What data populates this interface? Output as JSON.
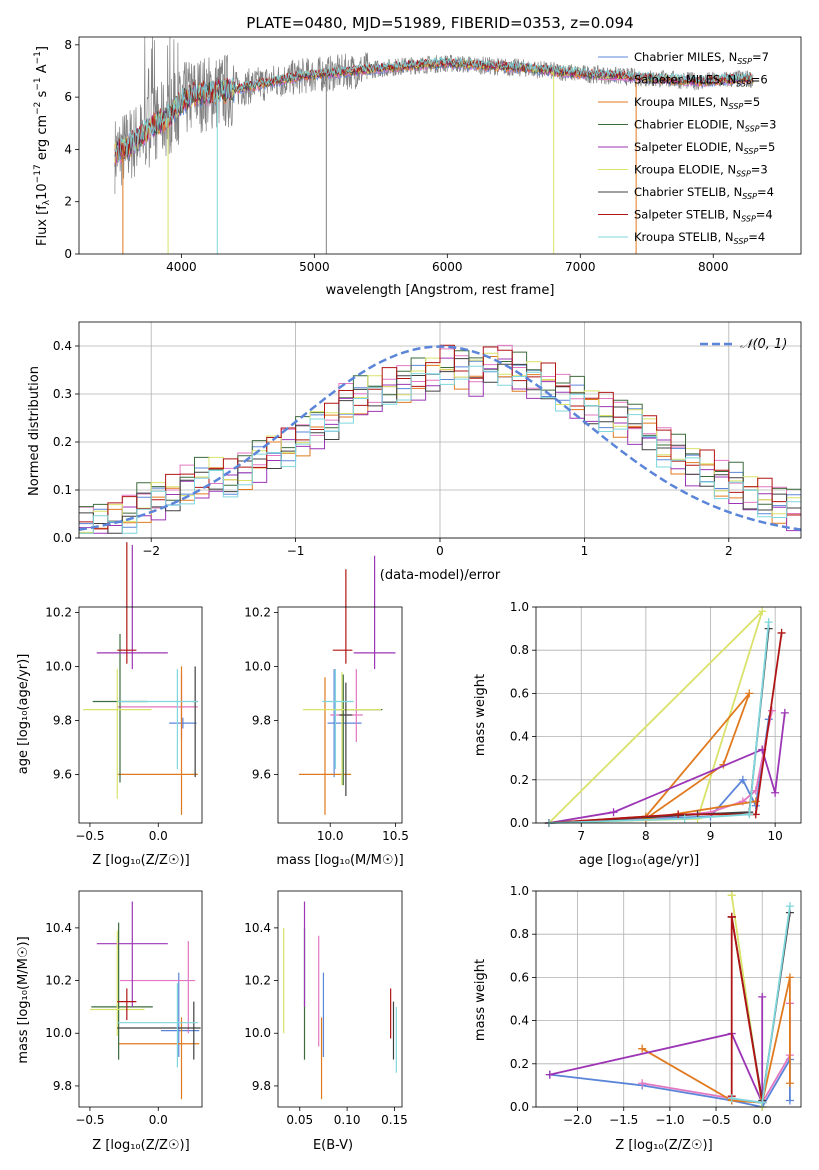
{
  "figure": {
    "title": "PLATE=0480, MJD=51989, FIBERID=0353, z=0.094"
  },
  "colors": {
    "chabrier_miles": "#5b85d9",
    "salpeter_miles": "#e377c2",
    "kroupa_miles": "#e07a1f",
    "chabrier_elodie": "#3c6b3c",
    "salpeter_elodie": "#9c35b5",
    "kroupa_elodie": "#d9e26a",
    "chabrier_stelib": "#404040",
    "salpeter_stelib": "#b01515",
    "kroupa_stelib": "#7fd6dc",
    "data": "#808080",
    "ylw": "#c7e84d"
  },
  "chart_data": [
    {
      "id": "spectrum",
      "type": "line",
      "xlabel": "wavelength [Angstrom, rest frame]",
      "xlim": [
        3230,
        8660
      ],
      "ylim": [
        0,
        8.3
      ],
      "xticks": [
        "4000",
        "5000",
        "6000",
        "7000",
        "8000"
      ],
      "yticks": [
        "0",
        "2",
        "4",
        "6",
        "8"
      ],
      "legend_position": "right",
      "legend": [
        {
          "name": "Chabrier MILES",
          "n": "7"
        },
        {
          "name": "Salpeter MILES",
          "n": "6"
        },
        {
          "name": "Kroupa MILES",
          "n": "5"
        },
        {
          "name": "Chabrier ELODIE",
          "n": "3"
        },
        {
          "name": "Salpeter ELODIE",
          "n": "5"
        },
        {
          "name": "Kroupa ELODIE",
          "n": "3"
        },
        {
          "name": "Chabrier STELIB",
          "n": "4"
        },
        {
          "name": "Salpeter STELIB",
          "n": "4"
        },
        {
          "name": "Kroupa STELIB",
          "n": "4"
        }
      ],
      "continuum": {
        "x": [
          3500,
          3650,
          3800,
          3900,
          4000,
          4100,
          4300,
          4500,
          4700,
          4900,
          5100,
          5300,
          5500,
          5700,
          6000,
          6300,
          6600,
          6800,
          7000,
          7300,
          7600,
          7900,
          8200
        ],
        "y": [
          3.8,
          4.3,
          5.0,
          5.2,
          5.8,
          6.1,
          6.2,
          6.4,
          6.6,
          6.8,
          6.9,
          7.0,
          7.1,
          7.2,
          7.3,
          7.2,
          7.1,
          7.0,
          6.9,
          6.8,
          6.7,
          6.6,
          6.7
        ]
      }
    },
    {
      "id": "residuals",
      "type": "line",
      "xlabel": "(data-model)/error",
      "ylabel": "Normed distribution",
      "xlim": [
        -2.5,
        2.5
      ],
      "ylim": [
        0,
        0.45
      ],
      "xticks": [
        "−2",
        "−1",
        "0",
        "1",
        "2"
      ],
      "yticks": [
        "0.0",
        "0.1",
        "0.2",
        "0.3",
        "0.4"
      ],
      "grid": true,
      "legend_position": "top-right",
      "legend": "𝒩(0, 1)",
      "bin_width": 0.1,
      "bin_start": -2.5,
      "series_base": [
        0.03,
        0.03,
        0.04,
        0.05,
        0.07,
        0.08,
        0.09,
        0.11,
        0.12,
        0.13,
        0.12,
        0.14,
        0.16,
        0.18,
        0.19,
        0.21,
        0.23,
        0.24,
        0.28,
        0.29,
        0.3,
        0.31,
        0.32,
        0.33,
        0.34,
        0.36,
        0.35,
        0.34,
        0.36,
        0.36,
        0.34,
        0.33,
        0.32,
        0.3,
        0.29,
        0.27,
        0.26,
        0.25,
        0.24,
        0.22,
        0.19,
        0.17,
        0.15,
        0.14,
        0.12,
        0.11,
        0.09,
        0.08,
        0.07,
        0.06
      ],
      "series_offsets": [
        0.0,
        0.012,
        -0.01,
        0.018,
        -0.015,
        0.008,
        -0.006,
        0.015,
        -0.012
      ]
    },
    {
      "id": "age-vs-Z",
      "type": "scatter",
      "xlabel": "Z [log₁₀(Z/Z☉)]",
      "ylabel": "age  [log₁₀(age/yr)]",
      "xlim": [
        -0.58,
        0.32
      ],
      "ylim": [
        9.42,
        10.22
      ],
      "xticks": [
        "−0.5",
        "0.0"
      ],
      "xtick_values": [
        -0.5,
        0.0
      ],
      "yticks": [
        "9.6",
        "9.8",
        "10.0",
        "10.2"
      ],
      "ytick_values": [
        9.6,
        9.8,
        10.0,
        10.2
      ],
      "points": [
        {
          "c": "chabrier_miles",
          "x": 0.18,
          "y": 9.79,
          "xe": [
            0.1,
            0.1
          ],
          "ye": [
            0.02,
            0.02
          ]
        },
        {
          "c": "salpeter_miles",
          "x": 0.17,
          "y": 9.85,
          "xe": [
            0.47,
            0.12
          ],
          "ye": [
            0.12,
            0.12
          ]
        },
        {
          "c": "kroupa_miles",
          "x": 0.17,
          "y": 9.6,
          "xe": [
            0.47,
            0.12
          ],
          "ye": [
            0.15,
            0.4
          ]
        },
        {
          "c": "chabrier_elodie",
          "x": -0.28,
          "y": 9.87,
          "xe": [
            0.2,
            0.2
          ],
          "ye": [
            0.3,
            0.25
          ]
        },
        {
          "c": "salpeter_elodie",
          "x": -0.19,
          "y": 10.05,
          "xe": [
            0.26,
            0.26
          ],
          "ye": [
            0.06,
            0.4
          ]
        },
        {
          "c": "kroupa_elodie",
          "x": -0.3,
          "y": 9.84,
          "xe": [
            0.25,
            0.25
          ],
          "ye": [
            0.33,
            0.15
          ]
        },
        {
          "c": "chabrier_stelib",
          "x": 0.27,
          "y": 9.87,
          "xe": [
            0.02,
            0.02
          ],
          "ye": [
            0.28,
            0.13
          ]
        },
        {
          "c": "salpeter_stelib",
          "x": -0.23,
          "y": 10.06,
          "xe": [
            0.07,
            0.07
          ],
          "ye": [
            0.05,
            0.4
          ]
        },
        {
          "c": "kroupa_stelib",
          "x": 0.14,
          "y": 9.87,
          "xe": [
            0.44,
            0.15
          ],
          "ye": [
            0.25,
            0.12
          ]
        }
      ]
    },
    {
      "id": "age-vs-mass",
      "type": "scatter",
      "xlabel": "mass [log₁₀(M/M☉)]",
      "xlim": [
        9.6,
        10.55
      ],
      "ylim": [
        9.42,
        10.22
      ],
      "xticks": [
        "10.0",
        "10.5"
      ],
      "xtick_values": [
        10.0,
        10.5
      ],
      "yticks": [
        "9.6",
        "9.8",
        "10.0",
        "10.2"
      ],
      "ytick_values": [
        9.6,
        9.8,
        10.0,
        10.2
      ],
      "points": [
        {
          "c": "chabrier_miles",
          "x": 10.03,
          "y": 9.79,
          "xe": [
            0.05,
            0.21
          ],
          "ye": [
            0.2,
            0.2
          ]
        },
        {
          "c": "salpeter_miles",
          "x": 10.2,
          "y": 9.82,
          "xe": [
            0.2,
            0.05
          ],
          "ye": [
            0.1,
            0.17
          ]
        },
        {
          "c": "kroupa_miles",
          "x": 9.96,
          "y": 9.6,
          "xe": [
            0.2,
            0.2
          ],
          "ye": [
            0.15,
            0.36
          ]
        },
        {
          "c": "chabrier_elodie",
          "x": 10.1,
          "y": 9.84,
          "xe": [
            0.05,
            0.3
          ],
          "ye": [
            0.28,
            0.13
          ]
        },
        {
          "c": "salpeter_elodie",
          "x": 10.34,
          "y": 10.05,
          "xe": [
            0.16,
            0.16
          ],
          "ye": [
            0.06,
            0.36
          ]
        },
        {
          "c": "kroupa_elodie",
          "x": 10.09,
          "y": 9.84,
          "xe": [
            0.3,
            0.3
          ],
          "ye": [
            0.28,
            0.14
          ]
        },
        {
          "c": "chabrier_stelib",
          "x": 10.12,
          "y": 9.82,
          "xe": [
            0.05,
            0.05
          ],
          "ye": [
            0.3,
            0.12
          ]
        },
        {
          "c": "salpeter_stelib",
          "x": 10.12,
          "y": 10.06,
          "xe": [
            0.1,
            0.05
          ],
          "ye": [
            0.05,
            0.3
          ]
        },
        {
          "c": "kroupa_stelib",
          "x": 10.04,
          "y": 9.87,
          "xe": [
            0.1,
            0.14
          ],
          "ye": [
            0.25,
            0.12
          ]
        }
      ]
    },
    {
      "id": "mass-weight-vs-age",
      "type": "line",
      "xlabel": "age  [log₁₀(age/yr)]",
      "ylabel": "mass weight",
      "xlim": [
        6.3,
        10.4
      ],
      "ylim": [
        0,
        1.0
      ],
      "xticks": [
        "7",
        "8",
        "9",
        "10"
      ],
      "xtick_values": [
        7,
        8,
        9,
        10
      ],
      "yticks": [
        "0.0",
        "0.2",
        "0.4",
        "0.6",
        "0.8",
        "1.0"
      ],
      "ytick_values": [
        0,
        0.2,
        0.4,
        0.6,
        0.8,
        1.0
      ],
      "grid": true,
      "series": [
        {
          "c": "kroupa_elodie",
          "x": [
            6.5,
            8.8,
            9.8,
            6.5
          ],
          "y": [
            0.0,
            0.02,
            0.98,
            0.0
          ]
        },
        {
          "c": "chabrier_miles",
          "x": [
            6.5,
            8.0,
            9.0,
            9.5,
            9.7,
            9.9
          ],
          "y": [
            0.0,
            0.02,
            0.03,
            0.2,
            0.08,
            0.48
          ]
        },
        {
          "c": "salpeter_miles",
          "x": [
            6.5,
            8.0,
            9.0,
            9.5,
            9.7,
            9.95
          ],
          "y": [
            0.0,
            0.02,
            0.05,
            0.1,
            0.15,
            0.52
          ]
        },
        {
          "c": "kroupa_miles",
          "x": [
            6.5,
            8.0,
            9.6,
            9.2,
            8.0,
            9.7
          ],
          "y": [
            0.0,
            0.03,
            0.6,
            0.27,
            0.02,
            0.1
          ]
        },
        {
          "c": "salpeter_elodie",
          "x": [
            6.5,
            7.5,
            9.8,
            10.0,
            10.15
          ],
          "y": [
            0.0,
            0.05,
            0.34,
            0.14,
            0.51
          ]
        },
        {
          "c": "chabrier_stelib",
          "x": [
            6.5,
            8.8,
            9.6,
            9.9
          ],
          "y": [
            0.0,
            0.04,
            0.05,
            0.9
          ]
        },
        {
          "c": "salpeter_stelib",
          "x": [
            6.5,
            8.5,
            9.7,
            10.1
          ],
          "y": [
            0.0,
            0.04,
            0.04,
            0.88
          ]
        },
        {
          "c": "kroupa_stelib",
          "x": [
            6.5,
            8.6,
            9.6,
            9.9
          ],
          "y": [
            0.0,
            0.02,
            0.04,
            0.93
          ]
        }
      ]
    },
    {
      "id": "mass-vs-Z",
      "type": "scatter",
      "xlabel": "Z [log₁₀(Z/Z☉)]",
      "ylabel": "mass [log₁₀(M/M☉)]",
      "xlim": [
        -0.58,
        0.32
      ],
      "ylim": [
        9.72,
        10.54
      ],
      "xticks": [
        "−0.5",
        "0.0"
      ],
      "xtick_values": [
        -0.5,
        0.0
      ],
      "yticks": [
        "9.8",
        "10.0",
        "10.2",
        "10.4"
      ],
      "ytick_values": [
        9.8,
        10.0,
        10.2,
        10.4
      ],
      "points": [
        {
          "c": "chabrier_miles",
          "x": 0.15,
          "y": 10.01,
          "xe": [
            0.13,
            0.15
          ],
          "ye": [
            0.1,
            0.22
          ]
        },
        {
          "c": "salpeter_miles",
          "x": 0.22,
          "y": 10.2,
          "xe": [
            0.5,
            0.05
          ],
          "ye": [
            0.2,
            0.15
          ]
        },
        {
          "c": "kroupa_miles",
          "x": 0.17,
          "y": 9.96,
          "xe": [
            0.46,
            0.13
          ],
          "ye": [
            0.21,
            0.1
          ]
        },
        {
          "c": "chabrier_elodie",
          "x": -0.29,
          "y": 10.1,
          "xe": [
            0.2,
            0.25
          ],
          "ye": [
            0.2,
            0.32
          ]
        },
        {
          "c": "salpeter_elodie",
          "x": -0.19,
          "y": 10.34,
          "xe": [
            0.26,
            0.26
          ],
          "ye": [
            0.24,
            0.16
          ]
        },
        {
          "c": "kroupa_elodie",
          "x": -0.3,
          "y": 10.09,
          "xe": [
            0.2,
            0.2
          ],
          "ye": [
            0.1,
            0.3
          ]
        },
        {
          "c": "chabrier_stelib",
          "x": 0.26,
          "y": 10.02,
          "xe": [
            0.56,
            0.05
          ],
          "ye": [
            0.12,
            0.1
          ]
        },
        {
          "c": "salpeter_stelib",
          "x": -0.23,
          "y": 10.12,
          "xe": [
            0.07,
            0.07
          ],
          "ye": [
            0.07,
            0.05
          ]
        },
        {
          "c": "kroupa_stelib",
          "x": 0.14,
          "y": 10.04,
          "xe": [
            0.44,
            0.15
          ],
          "ye": [
            0.17,
            0.15
          ]
        }
      ]
    },
    {
      "id": "mass-vs-EBV",
      "type": "scatter",
      "xlabel": "E(B-V)",
      "xlim": [
        0.027,
        0.158
      ],
      "ylim": [
        9.72,
        10.54
      ],
      "xticks": [
        "0.05",
        "0.10",
        "0.15"
      ],
      "xtick_values": [
        0.05,
        0.1,
        0.15
      ],
      "yticks": [
        "9.8",
        "10.0",
        "10.2",
        "10.4"
      ],
      "ytick_values": [
        9.8,
        10.0,
        10.2,
        10.4
      ],
      "points": [
        {
          "c": "kroupa_elodie",
          "x": 0.033,
          "y": 10.2,
          "ye": [
            0.2,
            0.2
          ]
        },
        {
          "c": "chabrier_elodie",
          "x": 0.055,
          "y": 10.1,
          "ye": [
            0.2,
            0.3
          ]
        },
        {
          "c": "salpeter_elodie",
          "x": 0.055,
          "y": 10.34,
          "ye": [
            0.24,
            0.16
          ]
        },
        {
          "c": "salpeter_miles",
          "x": 0.07,
          "y": 10.2,
          "ye": [
            0.25,
            0.17
          ]
        },
        {
          "c": "kroupa_miles",
          "x": 0.073,
          "y": 9.96,
          "ye": [
            0.21,
            0.1
          ]
        },
        {
          "c": "chabrier_miles",
          "x": 0.075,
          "y": 10.01,
          "ye": [
            0.1,
            0.22
          ]
        },
        {
          "c": "salpeter_stelib",
          "x": 0.146,
          "y": 10.1,
          "ye": [
            0.12,
            0.07
          ]
        },
        {
          "c": "chabrier_stelib",
          "x": 0.149,
          "y": 10.02,
          "ye": [
            0.12,
            0.1
          ]
        },
        {
          "c": "kroupa_stelib",
          "x": 0.152,
          "y": 10.0,
          "ye": [
            0.15,
            0.1
          ]
        }
      ]
    },
    {
      "id": "mass-weight-vs-Z",
      "type": "line",
      "xlabel": "Z [log₁₀(Z/Z☉)]",
      "ylabel": "mass weight",
      "xlim": [
        -2.45,
        0.42
      ],
      "ylim": [
        0,
        1.0
      ],
      "xticks": [
        "−2.0",
        "−1.5",
        "−1.0",
        "−0.5",
        "0.0"
      ],
      "xtick_values": [
        -2.0,
        -1.5,
        -1.0,
        -0.5,
        0.0
      ],
      "yticks": [
        "0.0",
        "0.2",
        "0.4",
        "0.6",
        "0.8",
        "1.0"
      ],
      "ytick_values": [
        0,
        0.2,
        0.4,
        0.6,
        0.8,
        1.0
      ],
      "grid": true,
      "series": [
        {
          "c": "chabrier_miles",
          "x": [
            -2.3,
            -1.3,
            -0.33,
            0.0,
            0.3,
            0.3
          ],
          "y": [
            0.15,
            0.1,
            0.03,
            0.0,
            0.22,
            0.03
          ]
        },
        {
          "c": "salpeter_miles",
          "x": [
            -1.3,
            -0.33,
            0.0,
            0.3,
            0.3
          ],
          "y": [
            0.11,
            0.04,
            0.02,
            0.24,
            0.48
          ]
        },
        {
          "c": "kroupa_miles",
          "x": [
            -1.3,
            -0.33,
            0.0,
            0.3,
            0.3
          ],
          "y": [
            0.27,
            0.03,
            0.02,
            0.6,
            0.11
          ]
        },
        {
          "c": "salpeter_elodie",
          "x": [
            -2.3,
            -0.33,
            0.0,
            0.0
          ],
          "y": [
            0.15,
            0.34,
            0.02,
            0.51
          ]
        },
        {
          "c": "kroupa_elodie",
          "x": [
            -0.33,
            0.0,
            -0.33
          ],
          "y": [
            0.98,
            0.0,
            0.98
          ]
        },
        {
          "c": "chabrier_stelib",
          "x": [
            -0.33,
            0.0,
            0.3
          ],
          "y": [
            0.88,
            0.03,
            0.9
          ]
        },
        {
          "c": "salpeter_stelib",
          "x": [
            -0.33,
            0.0,
            -0.33,
            -0.33
          ],
          "y": [
            0.88,
            0.02,
            0.88,
            0.05
          ]
        },
        {
          "c": "kroupa_stelib",
          "x": [
            -0.33,
            0.0,
            0.3
          ],
          "y": [
            0.04,
            0.02,
            0.93
          ]
        }
      ]
    }
  ]
}
